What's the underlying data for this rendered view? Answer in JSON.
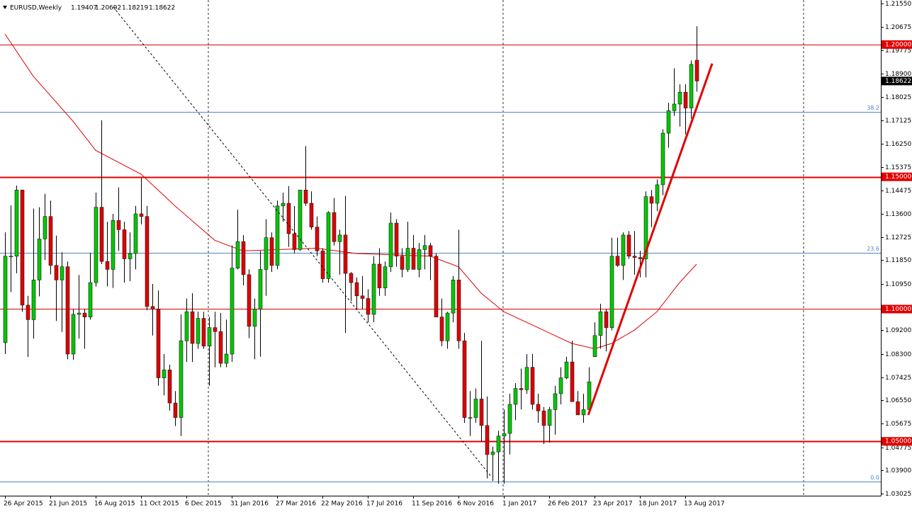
{
  "chart_data": {
    "type": "candlestick",
    "title": "EURUSD,Weekly",
    "categories": [
      "26 Apr 2015",
      null,
      null,
      null,
      null,
      null,
      null,
      null,
      "21 Jun 2015",
      null,
      null,
      null,
      null,
      null,
      null,
      null,
      "16 Aug 2015",
      null,
      null,
      null,
      null,
      null,
      null,
      null,
      "11 Oct 2015",
      null,
      null,
      null,
      null,
      null,
      null,
      null,
      "6 Dec 2015",
      null,
      null,
      null,
      null,
      null,
      null,
      null,
      "31 Jan 2016",
      null,
      null,
      null,
      null,
      null,
      null,
      null,
      "27 Mar 2016",
      null,
      null,
      null,
      null,
      null,
      null,
      null,
      "22 May 2016",
      null,
      null,
      null,
      null,
      null,
      null,
      null,
      "17 Jul 2016",
      null,
      null,
      null,
      null,
      null,
      null,
      null,
      "11 Sep 2016",
      null,
      null,
      null,
      null,
      null,
      null,
      null,
      "6 Nov 2016",
      null,
      null,
      null,
      null,
      null,
      null,
      null,
      "1 Jan 2017",
      null,
      null,
      null,
      null,
      null,
      null,
      null,
      "26 Feb 2017",
      null,
      null,
      null,
      null,
      null,
      null,
      null,
      "23 Apr 2017",
      null,
      null,
      null,
      null,
      null,
      null,
      null,
      "18 Jun 2017",
      null,
      null,
      null,
      null,
      null,
      null,
      null,
      "13 Aug 2017",
      null,
      null
    ],
    "open": [
      1.0873,
      1.12,
      1.12,
      1.145,
      1.1015,
      1.096,
      1.111,
      1.1265,
      1.135,
      1.1165,
      1.111,
      1.116,
      1.083,
      1.098,
      1.0985,
      1.097,
      1.11,
      1.1385,
      1.118,
      1.115,
      1.1335,
      1.13,
      1.119,
      1.121,
      1.136,
      1.135,
      1.101,
      1.1,
      1.074,
      1.077,
      1.0645,
      1.059,
      1.088,
      1.099,
      1.087,
      1.0965,
      1.086,
      1.093,
      1.0915,
      1.0795,
      1.083,
      1.1155,
      1.1255,
      1.113,
      1.0935,
      1.1,
      1.115,
      1.127,
      1.1165,
      1.139,
      1.14,
      1.1285,
      1.1225,
      1.145,
      1.14,
      1.131,
      1.122,
      1.1115,
      1.1365,
      1.1255,
      1.128,
      1.1135,
      1.11,
      1.105,
      1.104,
      1.098,
      1.117,
      1.108,
      1.116,
      1.1325,
      1.12,
      1.115,
      1.123,
      1.115,
      1.1225,
      1.124,
      1.12,
      1.097,
      1.088,
      1.0985,
      1.111,
      1.088,
      1.059,
      1.059,
      1.066,
      1.056,
      1.045,
      1.046,
      1.052,
      1.053,
      1.064,
      1.07,
      1.0695,
      1.078,
      1.064,
      1.0615,
      1.056,
      1.062,
      1.068,
      1.074,
      1.08,
      1.065,
      1.06,
      1.062,
      1.082,
      1.09,
      1.099,
      1.093,
      1.12,
      1.1165,
      1.128,
      1.12,
      1.1195,
      1.119,
      1.1425,
      1.14,
      1.147,
      1.1665,
      1.175,
      1.1775,
      1.182,
      1.176,
      1.19407
    ],
    "high": [
      1.129,
      1.1392,
      1.1467,
      1.145,
      1.105,
      1.138,
      1.1385,
      1.1436,
      1.141,
      1.1278,
      1.1215,
      1.118,
      1.1,
      1.1129,
      1.1,
      1.1213,
      1.144,
      1.1714,
      1.133,
      1.136,
      1.146,
      1.133,
      1.129,
      1.139,
      1.1495,
      1.139,
      1.1095,
      1.107,
      1.083,
      1.079,
      1.069,
      1.098,
      1.104,
      1.106,
      1.099,
      1.099,
      1.097,
      1.099,
      1.0985,
      1.096,
      1.124,
      1.1376,
      1.128,
      1.115,
      1.104,
      1.122,
      1.134,
      1.129,
      1.141,
      1.144,
      1.1465,
      1.139,
      1.145,
      1.1616,
      1.1445,
      1.135,
      1.123,
      1.137,
      1.142,
      1.13,
      1.1428,
      1.114,
      1.112,
      1.1125,
      1.1075,
      1.12,
      1.123,
      1.118,
      1.1365,
      1.134,
      1.123,
      1.133,
      1.128,
      1.125,
      1.128,
      1.125,
      1.121,
      1.104,
      1.099,
      1.1125,
      1.13,
      1.091,
      1.069,
      1.07,
      1.088,
      1.067,
      1.048,
      1.054,
      1.062,
      1.068,
      1.072,
      1.0775,
      1.083,
      1.083,
      1.068,
      1.063,
      1.063,
      1.071,
      1.078,
      1.082,
      1.088,
      1.069,
      1.068,
      1.078,
      1.095,
      1.102,
      1.1,
      1.127,
      1.127,
      1.129,
      1.1295,
      1.1295,
      1.122,
      1.1445,
      1.145,
      1.149,
      1.168,
      1.178,
      1.191,
      1.185,
      1.185,
      1.194,
      1.20692
    ],
    "low": [
      1.083,
      1.1064,
      1.1135,
      1.099,
      1.0819,
      1.0888,
      1.1048,
      1.1186,
      1.1131,
      1.0955,
      1.0914,
      1.081,
      1.0808,
      1.0888,
      1.085,
      1.096,
      1.1085,
      1.117,
      1.1086,
      1.108,
      1.122,
      1.11,
      1.1105,
      1.115,
      1.132,
      1.0996,
      1.09,
      1.071,
      1.0674,
      1.0616,
      1.0558,
      1.052,
      1.08,
      1.08,
      1.085,
      1.085,
      1.071,
      1.078,
      1.078,
      1.078,
      1.08,
      1.115,
      1.109,
      1.089,
      1.081,
      1.082,
      1.105,
      1.114,
      1.115,
      1.133,
      1.1235,
      1.121,
      1.122,
      1.139,
      1.13,
      1.12,
      1.11,
      1.11,
      1.124,
      1.113,
      1.091,
      1.103,
      1.1,
      1.1,
      1.095,
      1.095,
      1.105,
      1.105,
      1.114,
      1.116,
      1.112,
      1.114,
      1.115,
      1.112,
      1.115,
      1.111,
      1.097,
      1.086,
      1.085,
      1.095,
      1.085,
      1.057,
      1.052,
      1.057,
      1.05,
      1.036,
      1.035,
      1.034,
      1.034,
      1.045,
      1.058,
      1.062,
      1.068,
      1.062,
      1.057,
      1.049,
      1.0495,
      1.0525,
      1.064,
      1.0735,
      1.065,
      1.06,
      1.057,
      1.061,
      1.082,
      1.085,
      1.084,
      1.092,
      1.116,
      1.111,
      1.119,
      1.113,
      1.112,
      1.112,
      1.131,
      1.137,
      1.143,
      1.161,
      1.173,
      1.169,
      1.166,
      1.172,
      1.18219
    ],
    "close": [
      1.12,
      1.12,
      1.145,
      1.1015,
      1.096,
      1.111,
      1.1265,
      1.135,
      1.1165,
      1.111,
      1.116,
      1.083,
      1.098,
      1.0985,
      1.097,
      1.11,
      1.1385,
      1.118,
      1.115,
      1.1335,
      1.13,
      1.119,
      1.121,
      1.136,
      1.135,
      1.101,
      1.1,
      1.074,
      1.077,
      1.0645,
      1.059,
      1.088,
      1.099,
      1.087,
      1.0965,
      1.086,
      1.093,
      1.0915,
      1.0795,
      1.083,
      1.1155,
      1.1255,
      1.113,
      1.0935,
      1.1,
      1.115,
      1.127,
      1.1165,
      1.139,
      1.14,
      1.1285,
      1.1225,
      1.145,
      1.14,
      1.131,
      1.122,
      1.1115,
      1.1365,
      1.1255,
      1.128,
      1.1135,
      1.11,
      1.105,
      1.104,
      1.098,
      1.117,
      1.108,
      1.116,
      1.1325,
      1.12,
      1.115,
      1.123,
      1.115,
      1.1225,
      1.124,
      1.12,
      1.097,
      1.088,
      1.0985,
      1.111,
      1.088,
      1.059,
      1.059,
      1.066,
      1.056,
      1.045,
      1.046,
      1.052,
      1.053,
      1.064,
      1.07,
      1.0695,
      1.078,
      1.064,
      1.0615,
      1.056,
      1.062,
      1.068,
      1.074,
      1.08,
      1.065,
      1.06,
      1.062,
      1.0725,
      1.09,
      1.099,
      1.093,
      1.12,
      1.1165,
      1.128,
      1.12,
      1.1195,
      1.119,
      1.1425,
      1.14,
      1.147,
      1.1665,
      1.175,
      1.1775,
      1.182,
      1.176,
      1.1925,
      1.18622
    ],
    "up_color": "#00c800",
    "down_color": "#e00000",
    "ylim": [
      1.02945,
      1.21684
    ],
    "yticks": [
      {
        "value": 1.2155,
        "label": "1.21550"
      },
      {
        "value": 1.20675,
        "label": "1.20675"
      },
      {
        "value": 1.19775,
        "label": "1.19775"
      },
      {
        "value": 1.189,
        "label": "1.18900"
      },
      {
        "value": 1.18025,
        "label": "1.18025"
      },
      {
        "value": 1.17125,
        "label": "1.17125"
      },
      {
        "value": 1.1625,
        "label": "1.16250"
      },
      {
        "value": 1.15375,
        "label": "1.15375"
      },
      {
        "value": 1.14475,
        "label": "1.14475"
      },
      {
        "value": 1.136,
        "label": "1.13600"
      },
      {
        "value": 1.12725,
        "label": "1.12725"
      },
      {
        "value": 1.1185,
        "label": "1.11850"
      },
      {
        "value": 1.1095,
        "label": "1.10950"
      },
      {
        "value": 1.092,
        "label": "1.09200"
      },
      {
        "value": 1.083,
        "label": "1.08300"
      },
      {
        "value": 1.07425,
        "label": "1.07425"
      },
      {
        "value": 1.0655,
        "label": "1.06550"
      },
      {
        "value": 1.05675,
        "label": "1.05675"
      },
      {
        "value": 1.04775,
        "label": "1.04775"
      },
      {
        "value": 1.039,
        "label": "1.03900"
      },
      {
        "value": 1.03025,
        "label": "1.03025"
      }
    ],
    "hlines": [
      {
        "value": 1.2,
        "label": "1.20000",
        "style": "thin"
      },
      {
        "value": 1.15,
        "label": "1.15000",
        "style": "thick"
      },
      {
        "value": 1.1,
        "label": "1.10000",
        "style": "thin"
      },
      {
        "value": 1.05,
        "label": "1.05000",
        "style": "thick"
      }
    ],
    "hline_color": "#e00000",
    "fib_levels": [
      {
        "value": 1.1745,
        "label": "38.2"
      },
      {
        "value": 1.1213,
        "label": "23.6"
      },
      {
        "value": 1.0348,
        "label": "0.0"
      }
    ],
    "fib_color": "#4f86c0",
    "ma": {
      "color": "#e00000",
      "x": [
        0,
        5,
        12,
        16,
        24,
        30,
        37,
        42,
        55,
        62,
        75,
        80,
        84,
        88,
        94,
        100,
        104,
        107,
        111,
        115,
        119,
        122
      ],
      "values": [
        1.204,
        1.188,
        1.171,
        1.16,
        1.151,
        1.139,
        1.126,
        1.122,
        1.123,
        1.121,
        1.12,
        1.116,
        1.106,
        1.099,
        1.093,
        1.087,
        1.085,
        1.087,
        1.092,
        1.099,
        1.11,
        1.117
      ]
    },
    "trendlines": [
      {
        "x": [
          19.1,
          85.75
        ],
        "values": [
          1.2142,
          1.0367
        ],
        "color": "#000000",
        "style": "dashed"
      },
      {
        "x": [
          102.9,
          124.75
        ],
        "values": [
          1.06,
          1.1928
        ],
        "color": "#e00000",
        "style": "thick"
      }
    ]
  }
}
